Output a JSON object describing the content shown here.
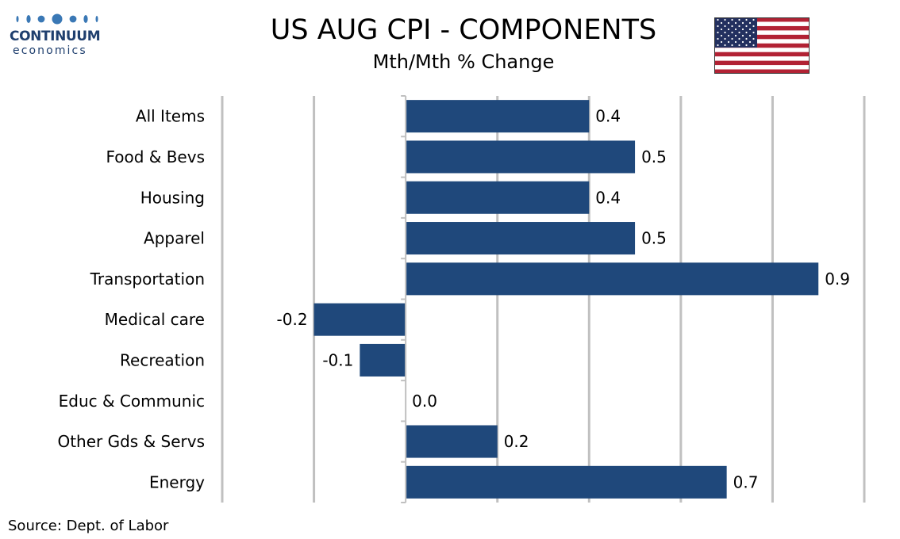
{
  "header": {
    "logo_word": "CONTINUUM",
    "logo_sub": "economics",
    "title": "US AUG CPI - COMPONENTS",
    "subtitle": "Mth/Mth % Change",
    "flag_icon": "us-flag-icon"
  },
  "footer": {
    "source": "Source: Dept. of Labor"
  },
  "colors": {
    "bar": "#1f487b",
    "grid": "#c0c0c0",
    "logo": "#1f3f6e",
    "flag_red": "#b22234",
    "flag_blue": "#23305f",
    "flag_white": "#ffffff"
  },
  "chart_data": {
    "type": "bar",
    "orientation": "horizontal",
    "categories": [
      "All Items",
      "Food & Bevs",
      "Housing",
      "Apparel",
      "Transportation",
      "Medical care",
      "Recreation",
      "Educ & Communic",
      "Other Gds & Servs",
      "Energy"
    ],
    "values": [
      0.4,
      0.5,
      0.4,
      0.5,
      0.9,
      -0.2,
      -0.1,
      0.0,
      0.2,
      0.7
    ],
    "data_labels": [
      "0.4",
      "0.5",
      "0.4",
      "0.5",
      "0.9",
      "-0.2",
      "-0.1",
      "0.0",
      "0.2",
      "0.7"
    ],
    "xlim": [
      -0.4,
      1.0
    ],
    "gridlines": [
      -0.4,
      -0.2,
      0.2,
      0.4,
      0.6,
      0.8,
      1.0
    ],
    "grid": true,
    "legend": "none"
  }
}
